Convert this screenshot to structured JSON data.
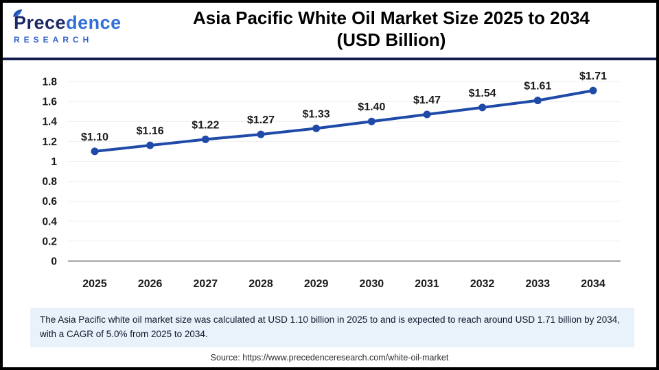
{
  "header": {
    "logo": {
      "brand_part1": "Prece",
      "brand_part2": "dence",
      "subtitle": "RESEARCH"
    },
    "title_line1": "Asia Pacific White Oil Market Size 2025 to 2034",
    "title_line2": "(USD Billion)"
  },
  "chart_data": {
    "type": "line",
    "title": "Asia Pacific White Oil Market Size 2025 to 2034 (USD Billion)",
    "categories": [
      "2025",
      "2026",
      "2027",
      "2028",
      "2029",
      "2030",
      "2031",
      "2032",
      "2033",
      "2034"
    ],
    "values": [
      1.1,
      1.16,
      1.22,
      1.27,
      1.33,
      1.4,
      1.47,
      1.54,
      1.61,
      1.71
    ],
    "data_labels": [
      "$1.10",
      "$1.16",
      "$1.22",
      "$1.27",
      "$1.33",
      "$1.40",
      "$1.47",
      "$1.54",
      "$1.61",
      "$1.71"
    ],
    "xlabel": "",
    "ylabel": "",
    "ylim": [
      0,
      1.8
    ],
    "y_ticks": [
      0,
      0.2,
      0.4,
      0.6,
      0.8,
      1,
      1.2,
      1.4,
      1.6,
      1.8
    ],
    "y_tick_labels": [
      "0",
      "0.2",
      "0.4",
      "0.6",
      "0.8",
      "1",
      "1.2",
      "1.4",
      "1.6",
      "1.8"
    ],
    "grid": true,
    "legend_position": "none",
    "line_color": "#1f4aa8",
    "marker_color": "#1f4aa8",
    "grid_color": "#f0f0f0",
    "axis_color": "#a6a6a6",
    "label_color": "#1a1a1a"
  },
  "footer": {
    "note": "The Asia Pacific white oil market size was calculated at USD 1.10 billion in 2025 to and is expected to reach around USD 1.71 billion by 2034, with a CAGR of 5.0% from 2025 to 2034.",
    "source": "Source: https://www.precedenceresearch.com/white-oil-market"
  },
  "colors": {
    "accent_navy": "#141b4d",
    "logo_navy": "#1b2a66",
    "logo_blue": "#2f6fd6",
    "note_background": "#e9f1fb",
    "frame_border": "#000000"
  }
}
